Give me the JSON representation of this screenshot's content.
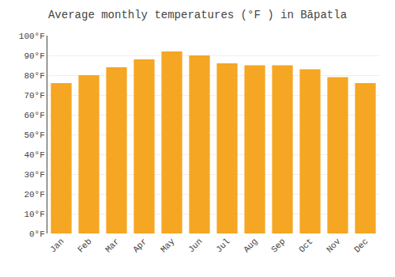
{
  "chart_data": {
    "type": "bar",
    "title": "Average monthly temperatures (°F ) in Bāpatla",
    "categories": [
      "Jan",
      "Feb",
      "Mar",
      "Apr",
      "May",
      "Jun",
      "Jul",
      "Aug",
      "Sep",
      "Oct",
      "Nov",
      "Dec"
    ],
    "values": [
      76,
      80,
      84,
      88,
      92,
      90,
      86,
      85,
      85,
      83,
      79,
      76
    ],
    "color": "#F5A623",
    "ylim": [
      0,
      100
    ],
    "yticks": [
      {
        "value": 0,
        "label": "0°F"
      },
      {
        "value": 10,
        "label": "10°F"
      },
      {
        "value": 20,
        "label": "20°F"
      },
      {
        "value": 30,
        "label": "30°F"
      },
      {
        "value": 40,
        "label": "40°F"
      },
      {
        "value": 50,
        "label": "50°F"
      },
      {
        "value": 60,
        "label": "60°F"
      },
      {
        "value": 70,
        "label": "70°F"
      },
      {
        "value": 80,
        "label": "80°F"
      },
      {
        "value": 90,
        "label": "90°F"
      },
      {
        "value": 100,
        "label": "100°F"
      }
    ],
    "grid": true
  }
}
